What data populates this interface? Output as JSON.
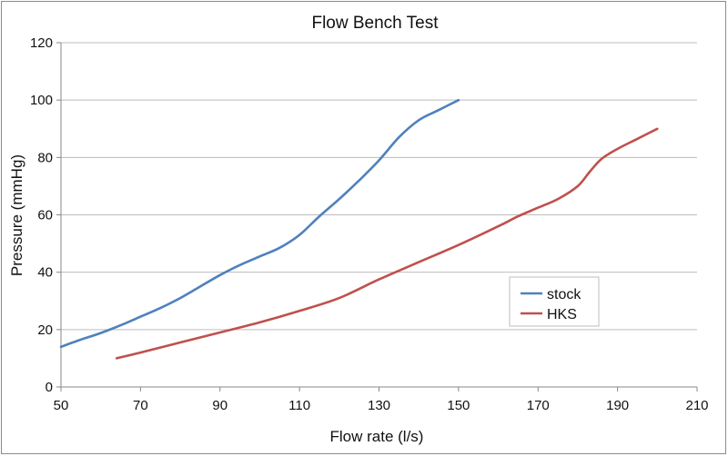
{
  "chart_data": {
    "type": "line",
    "title": "Flow Bench Test",
    "xlabel": "Flow rate (l/s)",
    "ylabel": "Pressure (mmHg)",
    "xlim": [
      50,
      210
    ],
    "ylim": [
      0,
      120
    ],
    "xticks": [
      50,
      70,
      90,
      110,
      130,
      150,
      170,
      190,
      210
    ],
    "yticks": [
      0,
      20,
      40,
      60,
      80,
      100,
      120
    ],
    "grid": true,
    "legend": "right",
    "series": [
      {
        "name": "stock",
        "color": "#4f81bd",
        "points": [
          [
            50,
            14
          ],
          [
            55,
            16.5
          ],
          [
            60,
            18.8
          ],
          [
            65,
            21.5
          ],
          [
            70,
            24.5
          ],
          [
            75,
            27.5
          ],
          [
            80,
            31
          ],
          [
            85,
            35
          ],
          [
            90,
            39
          ],
          [
            95,
            42.5
          ],
          [
            100,
            45.5
          ],
          [
            105,
            48.5
          ],
          [
            110,
            53
          ],
          [
            115,
            59.5
          ],
          [
            120,
            65.5
          ],
          [
            125,
            72
          ],
          [
            130,
            79
          ],
          [
            135,
            87
          ],
          [
            140,
            93
          ],
          [
            145,
            96.5
          ],
          [
            150,
            100
          ]
        ]
      },
      {
        "name": "HKS",
        "color": "#c0504d",
        "points": [
          [
            64,
            10
          ],
          [
            70,
            12
          ],
          [
            80,
            15.5
          ],
          [
            90,
            19
          ],
          [
            100,
            22.5
          ],
          [
            110,
            26.5
          ],
          [
            120,
            31
          ],
          [
            130,
            37.5
          ],
          [
            140,
            43.5
          ],
          [
            150,
            49.5
          ],
          [
            160,
            56
          ],
          [
            165,
            59.5
          ],
          [
            170,
            62.5
          ],
          [
            175,
            65.5
          ],
          [
            180,
            70
          ],
          [
            183,
            75
          ],
          [
            186,
            79.5
          ],
          [
            190,
            83
          ],
          [
            195,
            86.5
          ],
          [
            200,
            90
          ]
        ]
      }
    ]
  }
}
